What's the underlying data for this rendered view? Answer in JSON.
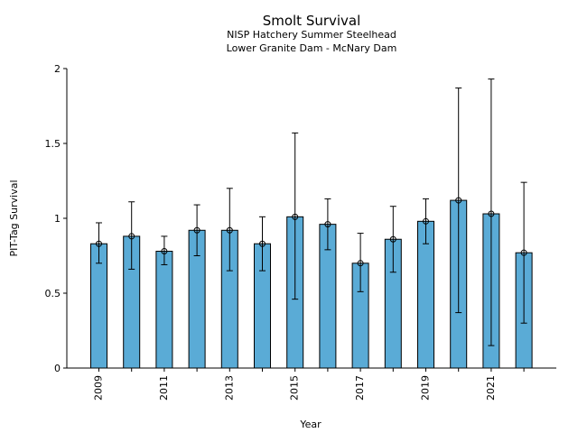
{
  "chart_data": {
    "type": "bar",
    "title": "Smolt Survival",
    "subtitle_lines": [
      "NISP Hatchery Summer Steelhead",
      "Lower Granite Dam - McNary Dam"
    ],
    "xlabel": "Year",
    "ylabel": "PIT-Tag Survival",
    "categories": [
      "2009",
      "2010",
      "2011",
      "2012",
      "2013",
      "2014",
      "2015",
      "2016",
      "2017",
      "2018",
      "2019",
      "2020",
      "2021",
      "2022"
    ],
    "x_tick_labels_shown": [
      "2009",
      "2011",
      "2013",
      "2015",
      "2017",
      "2019",
      "2021"
    ],
    "values": [
      0.83,
      0.88,
      0.78,
      0.92,
      0.92,
      0.83,
      1.01,
      0.96,
      0.7,
      0.86,
      0.98,
      1.12,
      1.03,
      0.77
    ],
    "error_lower": [
      0.7,
      0.66,
      0.69,
      0.75,
      0.65,
      0.65,
      0.46,
      0.79,
      0.51,
      0.64,
      0.83,
      0.37,
      0.15,
      0.3
    ],
    "error_upper": [
      0.97,
      1.11,
      0.88,
      1.09,
      1.2,
      1.01,
      1.57,
      1.13,
      0.9,
      1.08,
      1.13,
      1.87,
      1.93,
      1.24
    ],
    "ylim": [
      0,
      2
    ],
    "y_ticks": [
      0,
      0.5,
      1,
      1.5,
      2
    ],
    "y_tick_labels": [
      "0",
      "0.5",
      "1",
      "1.5",
      "2"
    ],
    "bar_color": "#5aabd6",
    "grid": false,
    "legend": "none"
  }
}
